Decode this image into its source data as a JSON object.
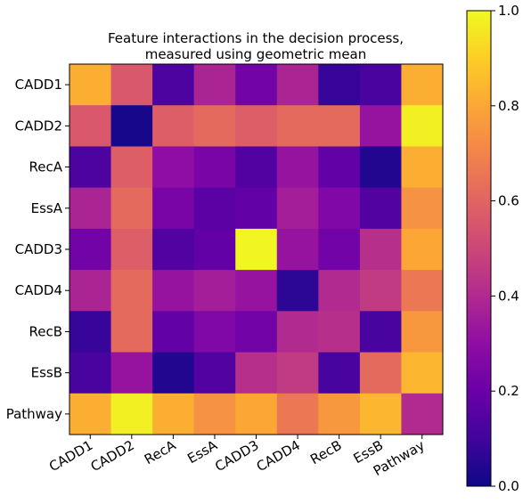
{
  "chart_data": {
    "type": "heatmap",
    "title": [
      "Feature interactions in the decision process,",
      "measured using geometric mean"
    ],
    "xlabel": "",
    "ylabel": "",
    "x_categories": [
      "CADD1",
      "CADD2",
      "RecA",
      "EssA",
      "CADD3",
      "CADD4",
      "RecB",
      "EssB",
      "Pathway"
    ],
    "y_categories": [
      "CADD1",
      "CADD2",
      "RecA",
      "EssA",
      "CADD3",
      "CADD4",
      "RecB",
      "EssB",
      "Pathway"
    ],
    "values": [
      [
        0.82,
        0.56,
        0.13,
        0.38,
        0.22,
        0.38,
        0.08,
        0.12,
        0.82
      ],
      [
        0.56,
        0.02,
        0.58,
        0.62,
        0.58,
        0.62,
        0.62,
        0.32,
        0.98
      ],
      [
        0.13,
        0.58,
        0.3,
        0.24,
        0.14,
        0.32,
        0.18,
        0.04,
        0.82
      ],
      [
        0.38,
        0.62,
        0.24,
        0.16,
        0.18,
        0.36,
        0.26,
        0.14,
        0.74
      ],
      [
        0.22,
        0.58,
        0.14,
        0.18,
        0.99,
        0.32,
        0.22,
        0.42,
        0.8
      ],
      [
        0.38,
        0.62,
        0.32,
        0.36,
        0.32,
        0.06,
        0.4,
        0.46,
        0.66
      ],
      [
        0.08,
        0.62,
        0.18,
        0.26,
        0.22,
        0.4,
        0.42,
        0.12,
        0.76
      ],
      [
        0.12,
        0.32,
        0.04,
        0.14,
        0.42,
        0.46,
        0.12,
        0.62,
        0.84
      ],
      [
        0.82,
        0.98,
        0.82,
        0.74,
        0.8,
        0.66,
        0.76,
        0.84,
        0.4
      ]
    ],
    "colormap": "plasma",
    "colorbar": {
      "range": [
        0.0,
        1.0
      ],
      "ticks": [
        "0.0",
        "0.2",
        "0.4",
        "0.6",
        "0.8",
        "1.0"
      ]
    },
    "grid": false
  }
}
